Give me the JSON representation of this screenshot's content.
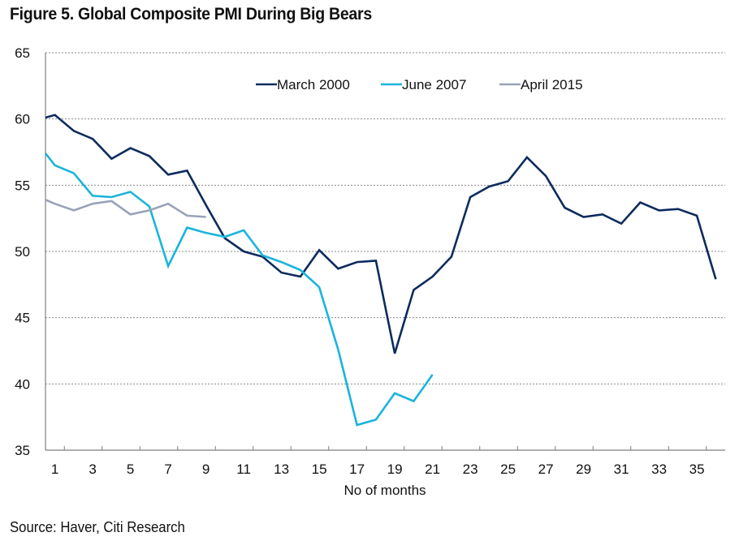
{
  "chart_data": {
    "type": "line",
    "title": "Figure 5. Global Composite PMI During Big Bears",
    "xlabel": "No of months",
    "ylabel": "",
    "ylim": [
      35,
      65
    ],
    "yticks": [
      35,
      40,
      45,
      50,
      55,
      60,
      65
    ],
    "xlim": [
      0.5,
      36.5
    ],
    "xtick_labels": [
      "1",
      "3",
      "5",
      "7",
      "9",
      "11",
      "13",
      "15",
      "17",
      "19",
      "21",
      "23",
      "25",
      "27",
      "29",
      "31",
      "33",
      "35"
    ],
    "xtick_label_values": [
      1,
      3,
      5,
      7,
      9,
      11,
      13,
      15,
      17,
      19,
      21,
      23,
      25,
      27,
      29,
      31,
      33,
      35
    ],
    "grid": "horizontal dashed",
    "legend_position": "top-center",
    "series": [
      {
        "name": "March 2000",
        "color": "#0d2b5e",
        "x": [
          0.5,
          1,
          2,
          3,
          4,
          5,
          6,
          7,
          8,
          9,
          10,
          11,
          12,
          13,
          14,
          15,
          16,
          17,
          18,
          19,
          20,
          21,
          22,
          23,
          24,
          25,
          26,
          27,
          28,
          29,
          30,
          31,
          32,
          33,
          34,
          35,
          36
        ],
        "values": [
          60.1,
          60.3,
          59.1,
          58.5,
          57.0,
          57.8,
          57.2,
          55.8,
          56.1,
          53.5,
          51.0,
          50.0,
          49.6,
          48.4,
          48.1,
          50.1,
          48.7,
          49.2,
          49.3,
          42.3,
          47.1,
          48.1,
          49.6,
          54.1,
          54.9,
          55.3,
          57.1,
          55.7,
          53.3,
          52.6,
          52.8,
          52.1,
          53.7,
          53.1,
          53.2,
          52.7,
          47.9
        ]
      },
      {
        "name": "June 2007",
        "color": "#1ab4dc",
        "x": [
          0.5,
          1,
          2,
          3,
          4,
          5,
          6,
          7,
          8,
          9,
          10,
          11,
          12,
          13,
          14,
          15,
          16,
          17,
          18,
          19,
          20,
          21
        ],
        "values": [
          57.4,
          56.5,
          55.9,
          54.2,
          54.1,
          54.5,
          53.4,
          48.9,
          51.8,
          51.4,
          51.1,
          51.6,
          49.7,
          49.2,
          48.6,
          47.3,
          42.6,
          36.9,
          37.3,
          39.3,
          38.7,
          40.7
        ]
      },
      {
        "name": "April 2015",
        "color": "#98a3b8",
        "x": [
          0.5,
          1,
          2,
          3,
          4,
          5,
          6,
          7,
          8,
          9
        ],
        "values": [
          53.9,
          53.6,
          53.1,
          53.6,
          53.8,
          52.8,
          53.1,
          53.6,
          52.7,
          52.6
        ]
      }
    ]
  },
  "footer": {
    "source": "Source: Haver, Citi Research"
  }
}
